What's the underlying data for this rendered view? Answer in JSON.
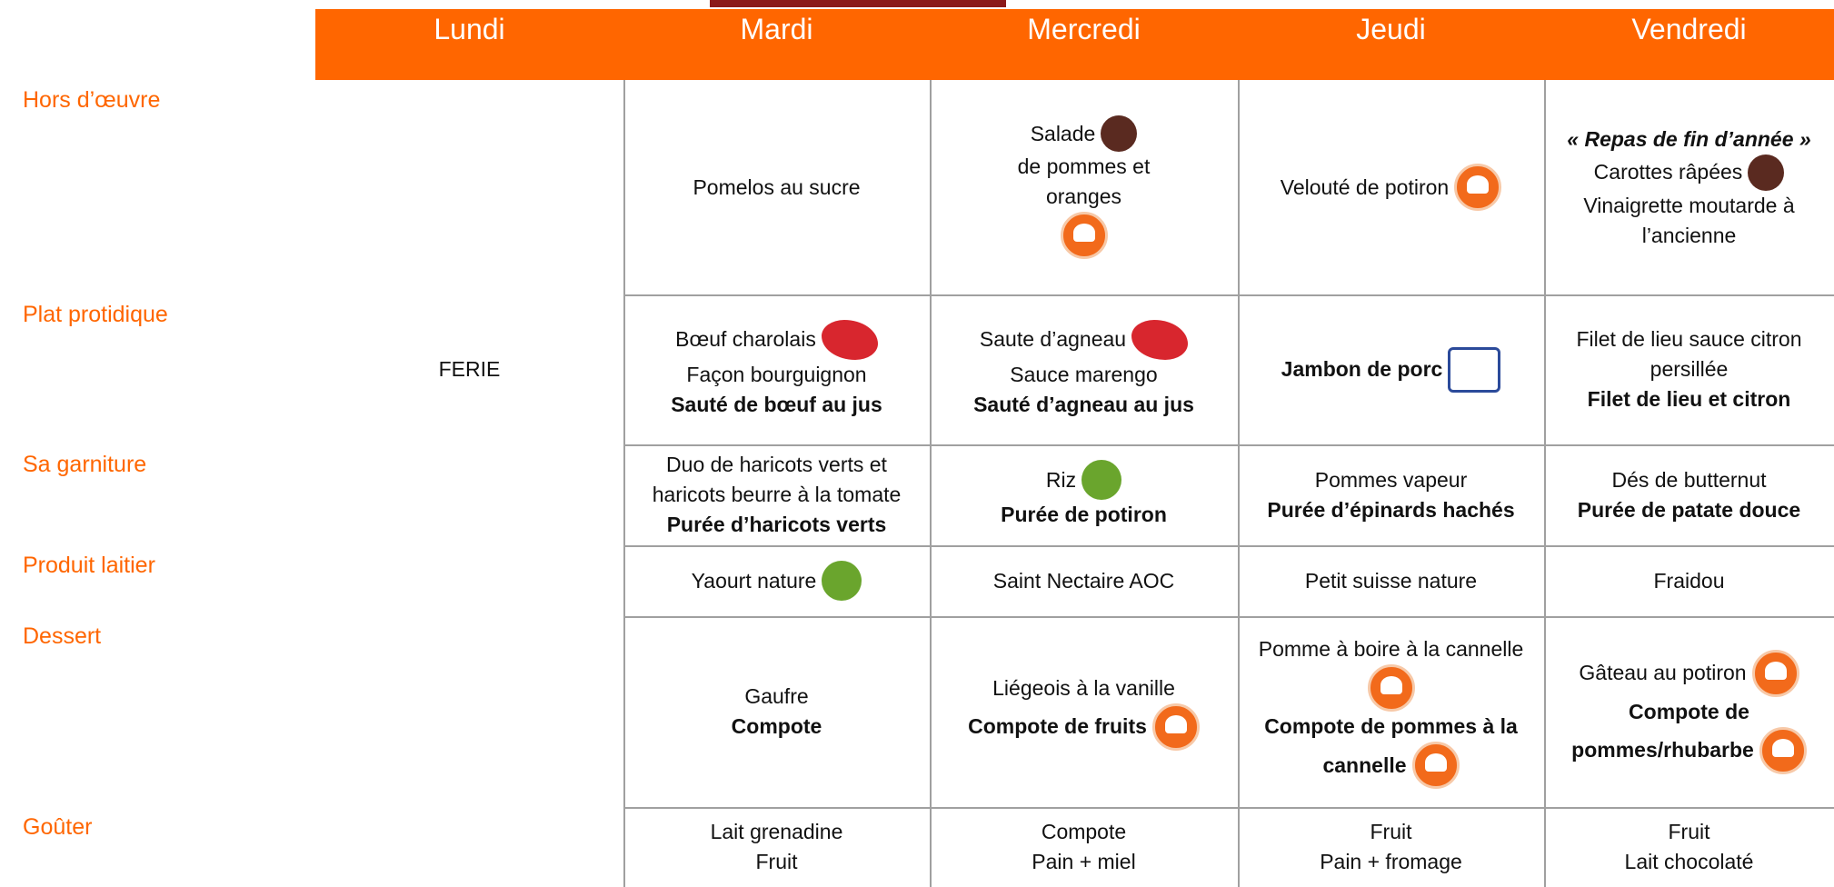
{
  "header": {
    "days": [
      "Lundi",
      "Mardi",
      "Mercredi",
      "Jeudi",
      "Vendredi"
    ]
  },
  "rows": [
    {
      "label": "Hors d’œuvre",
      "cells": [
        {
          "lines": []
        },
        {
          "lines": [
            {
              "text": "Pomelos au sucre"
            }
          ]
        },
        {
          "lines": [
            {
              "text": "Salade",
              "icon": "local"
            },
            {
              "text": "de pommes et"
            },
            {
              "text": "oranges"
            },
            {
              "icon": "chef"
            }
          ]
        },
        {
          "lines": [
            {
              "text": "Velouté de potiron",
              "icon": "chef"
            }
          ]
        },
        {
          "lines": [
            {
              "text": "« Repas de fin d’année »",
              "bold": true,
              "italic": true
            },
            {
              "text": "Carottes râpées",
              "icon": "local"
            },
            {
              "text": "Vinaigrette moutarde à"
            },
            {
              "text": "l’ancienne"
            }
          ]
        }
      ]
    },
    {
      "label": "Plat protidique",
      "cells": [
        {
          "lines": [
            {
              "text": "FERIE"
            }
          ]
        },
        {
          "lines": [
            {
              "text": "Bœuf charolais",
              "icon": "rouge"
            },
            {
              "text": "Façon bourguignon"
            },
            {
              "text": "Sauté de bœuf au jus",
              "bold": true
            }
          ]
        },
        {
          "lines": [
            {
              "text": "Saute d’agneau",
              "icon": "rouge"
            },
            {
              "text": "Sauce marengo"
            },
            {
              "text": "Sauté d’agneau au jus",
              "bold": true
            }
          ]
        },
        {
          "lines": [
            {
              "text": "Jambon de porc",
              "bold": true,
              "icon": "porc"
            }
          ]
        },
        {
          "lines": [
            {
              "text": "Filet de lieu sauce citron"
            },
            {
              "text": "persillée"
            },
            {
              "text": "Filet de lieu et citron",
              "bold": true
            }
          ]
        }
      ]
    },
    {
      "label": "Sa garniture",
      "cells": [
        {
          "lines": []
        },
        {
          "lines": [
            {
              "text": "Duo de haricots verts et"
            },
            {
              "text": "haricots beurre à la tomate"
            },
            {
              "text": "Purée d’haricots verts",
              "bold": true
            }
          ]
        },
        {
          "lines": [
            {
              "text": "Riz",
              "icon": "bio"
            },
            {
              "text": "Purée de potiron",
              "bold": true
            }
          ]
        },
        {
          "lines": [
            {
              "text": "Pommes vapeur"
            },
            {
              "text": "Purée d’épinards hachés",
              "bold": true
            }
          ]
        },
        {
          "lines": [
            {
              "text": "Dés de butternut"
            },
            {
              "text": "Purée de patate douce",
              "bold": true
            }
          ]
        }
      ]
    },
    {
      "label": "Produit laitier",
      "cells": [
        {
          "lines": []
        },
        {
          "lines": [
            {
              "text": "Yaourt nature",
              "icon": "bio"
            }
          ]
        },
        {
          "lines": [
            {
              "text": "Saint Nectaire AOC"
            }
          ]
        },
        {
          "lines": [
            {
              "text": "Petit suisse nature"
            }
          ]
        },
        {
          "lines": [
            {
              "text": "Fraidou"
            }
          ]
        }
      ]
    },
    {
      "label": "Dessert",
      "cells": [
        {
          "lines": []
        },
        {
          "lines": [
            {
              "text": "Gaufre"
            },
            {
              "text": "Compote",
              "bold": true
            }
          ]
        },
        {
          "lines": [
            {
              "text": "Liégeois à la vanille"
            },
            {
              "text": "Compote de fruits",
              "bold": true,
              "icon": "chef"
            }
          ]
        },
        {
          "lines": [
            {
              "text": "Pomme à boire à la cannelle"
            },
            {
              "icon": "chef"
            },
            {
              "text": "Compote de pommes à la",
              "bold": true
            },
            {
              "text": "cannelle",
              "bold": true,
              "icon": "chef"
            }
          ]
        },
        {
          "lines": [
            {
              "text": "Gâteau au potiron",
              "icon": "chef"
            },
            {
              "text": "Compote de",
              "bold": true
            },
            {
              "text": "pommes/rhubarbe",
              "bold": true,
              "icon": "chef"
            }
          ]
        }
      ]
    },
    {
      "label": "Goûter",
      "cells": [
        {
          "lines": []
        },
        {
          "lines": [
            {
              "text": "Lait grenadine"
            },
            {
              "text": "Fruit"
            }
          ]
        },
        {
          "lines": [
            {
              "text": "Compote"
            },
            {
              "text": "Pain + miel"
            }
          ]
        },
        {
          "lines": [
            {
              "text": "Fruit"
            },
            {
              "text": "Pain + fromage"
            }
          ]
        },
        {
          "lines": [
            {
              "text": "Fruit"
            },
            {
              "text": "Lait chocolaté"
            }
          ]
        }
      ]
    }
  ]
}
